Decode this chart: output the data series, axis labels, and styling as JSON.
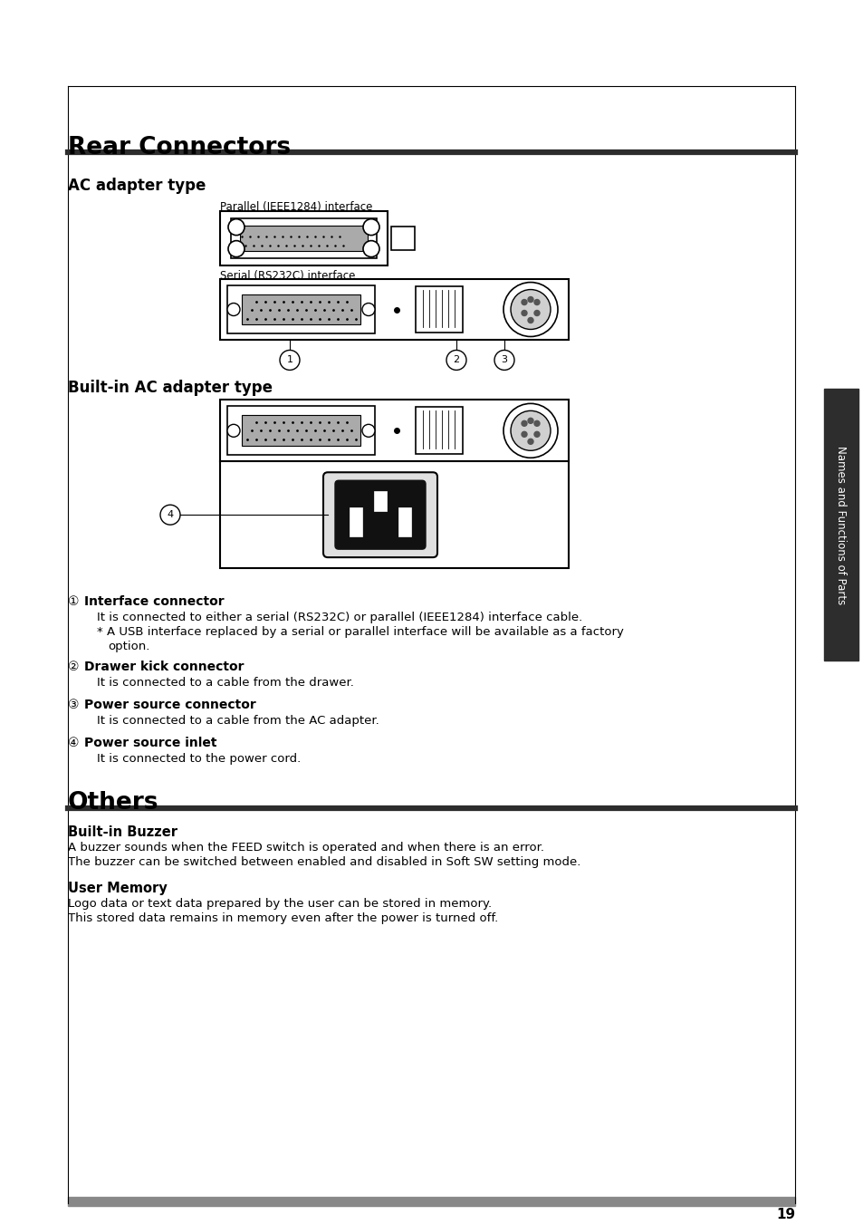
{
  "title": "Rear Connectors",
  "subtitle1": "AC adapter type",
  "subtitle2": "Built-in AC adapter type",
  "section2_title": "Others",
  "subsection1": "Built-in Buzzer",
  "subsection2": "User Memory",
  "parallel_label": "Parallel (IEEE1284) interface",
  "serial_label": "Serial (RS232C) interface",
  "item1_title": "Interface connector",
  "item1_text1": "It is connected to either a serial (RS232C) or parallel (IEEE1284) interface cable.",
  "item1_text2": "* A USB interface replaced by a serial or parallel interface will be available as a factory",
  "item1_text3": "   option.",
  "item2_title": "Drawer kick connector",
  "item2_text": "It is connected to a cable from the drawer.",
  "item3_title": "Power source connector",
  "item3_text": "It is connected to a cable from the AC adapter.",
  "item4_title": "Power source inlet",
  "item4_text": "It is connected to the power cord.",
  "buzzer_text1": "A buzzer sounds when the FEED switch is operated and when there is an error.",
  "buzzer_text2": "The buzzer can be switched between enabled and disabled in Soft SW setting mode.",
  "memory_text1": "Logo data or text data prepared by the user can be stored in memory.",
  "memory_text2": "This stored data remains in memory even after the power is turned off.",
  "page_number": "19",
  "sidebar_text": "Names and Functions of Parts",
  "bg_color": "#ffffff",
  "text_color": "#000000",
  "sidebar_color": "#2d2d2d",
  "hr_color": "#2d2d2d",
  "footer_color": "#888888",
  "lm": 75,
  "rm": 878
}
